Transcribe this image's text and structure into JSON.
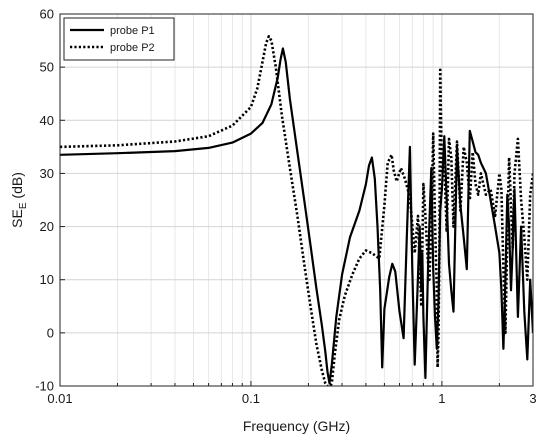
{
  "chart_data": {
    "type": "line",
    "title": "",
    "xlabel": "Frequency (GHz)",
    "ylabel": "SE",
    "ylabel_subscript": "E",
    "ylabel_unit": " (dB)",
    "xscale": "log",
    "xlim": [
      0.01,
      3
    ],
    "ylim": [
      -10,
      60
    ],
    "xticks": [
      0.01,
      0.1,
      1,
      3
    ],
    "xtick_labels": [
      "0.01",
      "0.1",
      "1",
      "3"
    ],
    "yticks": [
      -10,
      0,
      10,
      20,
      30,
      40,
      50,
      60
    ],
    "ytick_labels": [
      "-10",
      "0",
      "10",
      "20",
      "30",
      "40",
      "50",
      "60"
    ],
    "grid": true,
    "legend_position": "top-left",
    "series": [
      {
        "name": "probe P1",
        "style": "solid",
        "color": "#000000",
        "x": [
          0.01,
          0.02,
          0.04,
          0.06,
          0.08,
          0.1,
          0.115,
          0.128,
          0.138,
          0.143,
          0.147,
          0.152,
          0.16,
          0.175,
          0.19,
          0.205,
          0.22,
          0.235,
          0.245,
          0.252,
          0.258,
          0.265,
          0.28,
          0.3,
          0.33,
          0.37,
          0.4,
          0.415,
          0.43,
          0.445,
          0.46,
          0.475,
          0.487,
          0.5,
          0.53,
          0.55,
          0.57,
          0.6,
          0.63,
          0.655,
          0.68,
          0.7,
          0.72,
          0.745,
          0.765,
          0.78,
          0.79,
          0.8,
          0.82,
          0.85,
          0.88,
          0.9,
          0.92,
          0.94,
          0.96,
          0.98,
          1.0,
          1.03,
          1.06,
          1.09,
          1.12,
          1.15,
          1.2,
          1.25,
          1.3,
          1.35,
          1.4,
          1.45,
          1.5,
          1.55,
          1.6,
          1.7,
          1.8,
          1.9,
          2.0,
          2.05,
          2.1,
          2.15,
          2.2,
          2.25,
          2.3,
          2.35,
          2.4,
          2.5,
          2.6,
          2.7,
          2.8,
          2.9,
          3.0
        ],
        "y": [
          33.5,
          33.8,
          34.2,
          34.8,
          35.8,
          37.5,
          39.5,
          43.0,
          48.0,
          51.5,
          53.5,
          51.0,
          44.0,
          34.0,
          25.0,
          16.5,
          8.5,
          1.5,
          -3.5,
          -7.5,
          -9.5,
          -6.0,
          3.0,
          11.0,
          18.0,
          23.0,
          28.0,
          31.5,
          33.0,
          29.0,
          20.0,
          8.0,
          -6.5,
          4.5,
          10.5,
          13.0,
          11.5,
          4.0,
          -1.0,
          18.0,
          35.0,
          12.0,
          -6.0,
          8.0,
          20.0,
          8.0,
          15.0,
          3.0,
          -8.5,
          15.0,
          31.0,
          12.0,
          3.0,
          -3.0,
          6.0,
          23.0,
          27.0,
          37.0,
          25.0,
          13.0,
          8.0,
          4.0,
          35.0,
          24.0,
          18.0,
          12.0,
          38.0,
          36.0,
          34.0,
          33.5,
          32.0,
          30.0,
          25.0,
          20.0,
          15.0,
          8.0,
          -3.0,
          10.0,
          26.0,
          20.0,
          8.0,
          16.0,
          27.0,
          3.0,
          20.0,
          4.0,
          -5.0,
          10.0,
          0.0
        ]
      },
      {
        "name": "probe P2",
        "style": "dotted",
        "color": "#000000",
        "x": [
          0.01,
          0.02,
          0.04,
          0.06,
          0.08,
          0.1,
          0.108,
          0.115,
          0.12,
          0.124,
          0.128,
          0.135,
          0.145,
          0.16,
          0.175,
          0.19,
          0.205,
          0.22,
          0.235,
          0.245,
          0.25,
          0.255,
          0.26,
          0.265,
          0.275,
          0.29,
          0.31,
          0.34,
          0.37,
          0.4,
          0.43,
          0.47,
          0.5,
          0.52,
          0.545,
          0.56,
          0.58,
          0.61,
          0.64,
          0.68,
          0.72,
          0.75,
          0.78,
          0.8,
          0.82,
          0.84,
          0.86,
          0.88,
          0.9,
          0.92,
          0.94,
          0.95,
          0.96,
          0.97,
          0.98,
          1.0,
          1.03,
          1.06,
          1.09,
          1.12,
          1.15,
          1.2,
          1.25,
          1.3,
          1.35,
          1.4,
          1.45,
          1.5,
          1.55,
          1.6,
          1.7,
          1.8,
          1.9,
          2.0,
          2.05,
          2.1,
          2.15,
          2.2,
          2.25,
          2.3,
          2.35,
          2.4,
          2.5,
          2.6,
          2.7,
          2.8,
          2.9,
          3.0
        ],
        "y": [
          35.0,
          35.3,
          36.0,
          37.0,
          39.0,
          42.5,
          46.0,
          51.0,
          54.5,
          55.8,
          55.0,
          50.0,
          41.0,
          31.0,
          22.0,
          13.0,
          5.0,
          -2.0,
          -7.0,
          -9.5,
          -10.0,
          -10.0,
          -10.0,
          -9.5,
          -4.0,
          2.5,
          7.0,
          11.0,
          14.0,
          15.5,
          15.0,
          14.0,
          24.0,
          32.0,
          33.5,
          30.5,
          28.5,
          31.0,
          29.0,
          25.5,
          15.0,
          22.0,
          5.0,
          28.0,
          22.0,
          15.0,
          10.0,
          20.0,
          37.5,
          21.0,
          8.0,
          -6.5,
          0.0,
          15.0,
          49.5,
          30.0,
          32.0,
          19.0,
          36.5,
          33.0,
          20.0,
          36.0,
          23.0,
          35.0,
          32.0,
          25.0,
          34.0,
          28.0,
          26.0,
          30.0,
          26.0,
          27.0,
          22.0,
          30.0,
          27.0,
          12.0,
          0.0,
          18.0,
          33.0,
          24.0,
          16.0,
          30.0,
          36.5,
          25.0,
          18.0,
          10.0,
          26.0,
          30.0
        ]
      }
    ]
  }
}
